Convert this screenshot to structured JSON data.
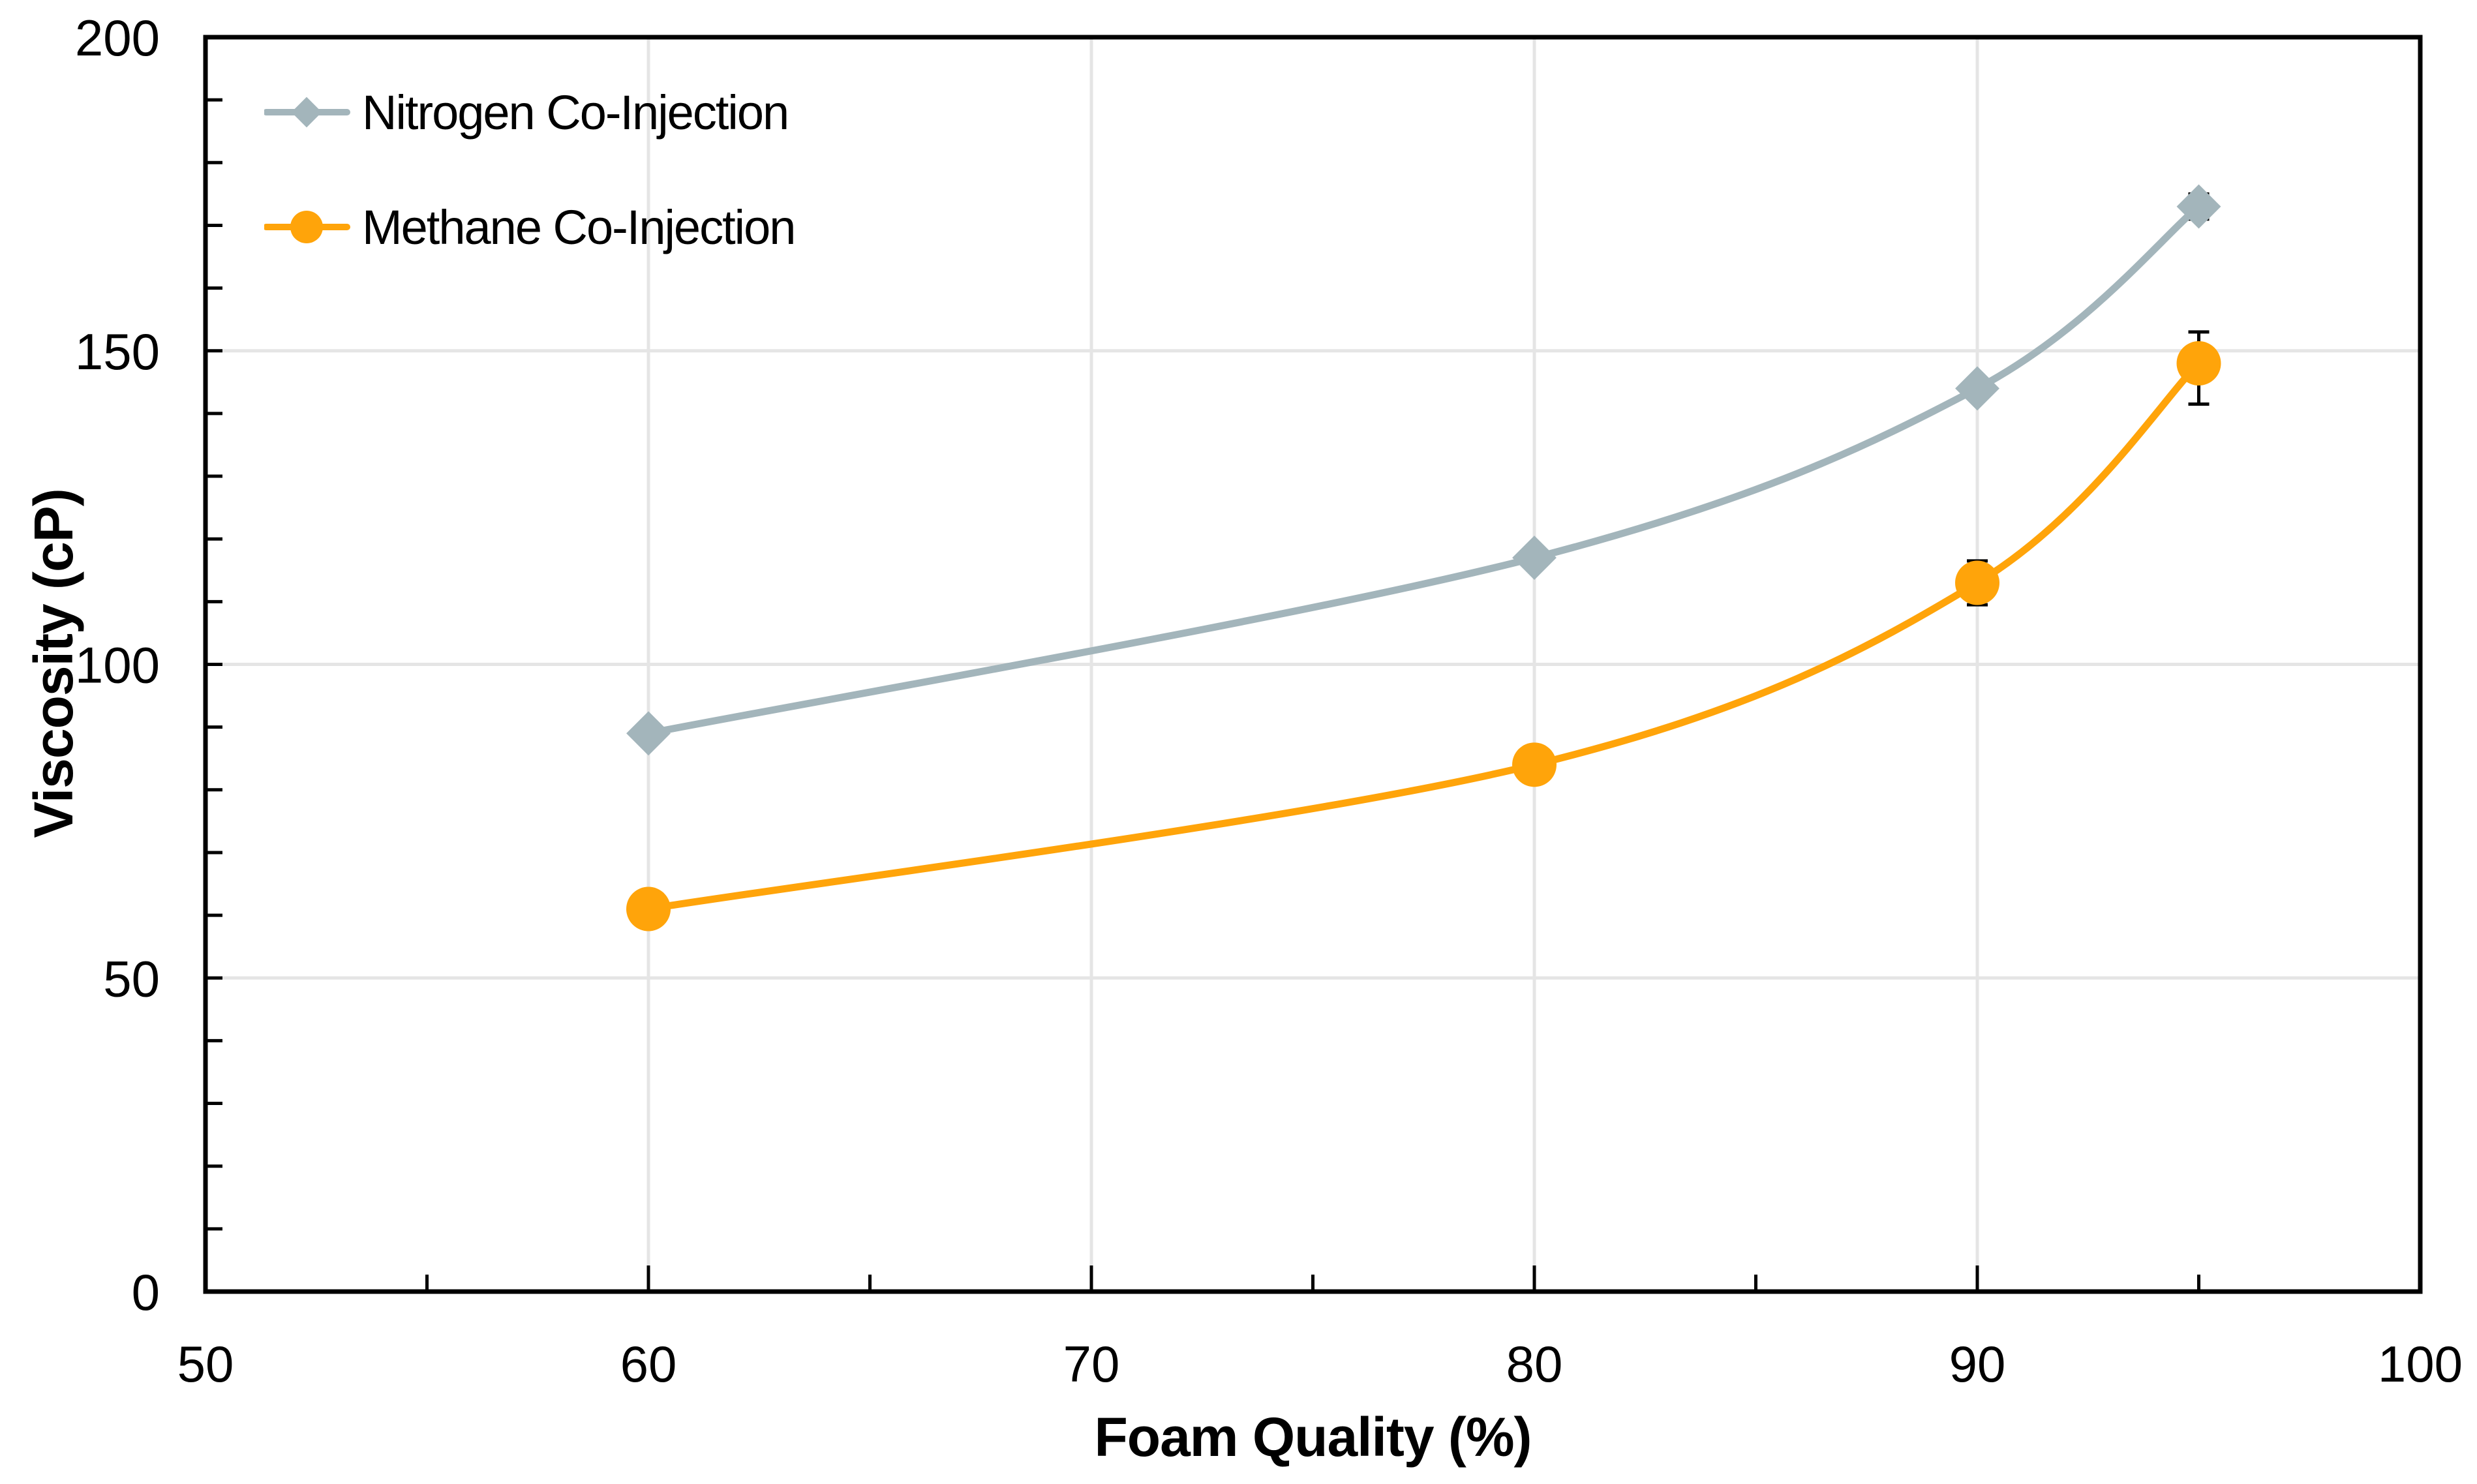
{
  "chart_data": {
    "type": "line",
    "title": "",
    "xlabel": "Foam Quality (%)",
    "ylabel": "Viscosity (cP)",
    "xlim": [
      50,
      100
    ],
    "ylim": [
      0,
      200
    ],
    "x_major_ticks": [
      50,
      60,
      70,
      80,
      90,
      100
    ],
    "x_minor_tick_step": 5,
    "y_major_ticks": [
      0,
      50,
      100,
      150,
      200
    ],
    "y_minor_tick_step": 10,
    "grid": {
      "vertical": true,
      "horizontal": true,
      "color": "#E5E5E5"
    },
    "frame_color": "#000000",
    "background_color": "#FFFFFF",
    "legend_position": "top-left-inside",
    "series": [
      {
        "name": "Nitrogen Co-Injection",
        "color": "#A3B5BB",
        "marker": "diamond",
        "smooth": true,
        "x": [
          60,
          80,
          90,
          95
        ],
        "values": [
          89,
          117,
          144,
          173
        ],
        "error_bars": [
          {
            "x": 95,
            "value": 173,
            "plus": 2,
            "minus": 2
          }
        ]
      },
      {
        "name": "Methane Co-Injection",
        "color": "#FFA40A",
        "marker": "circle",
        "smooth": true,
        "x": [
          60,
          80,
          90,
          95
        ],
        "values": [
          61,
          84,
          113,
          148
        ],
        "error_bars": [
          {
            "x": 90,
            "value": 113,
            "plus": 3.5,
            "minus": 3.5
          },
          {
            "x": 95,
            "value": 148,
            "plus": 5,
            "minus": 6.5
          }
        ]
      }
    ]
  }
}
